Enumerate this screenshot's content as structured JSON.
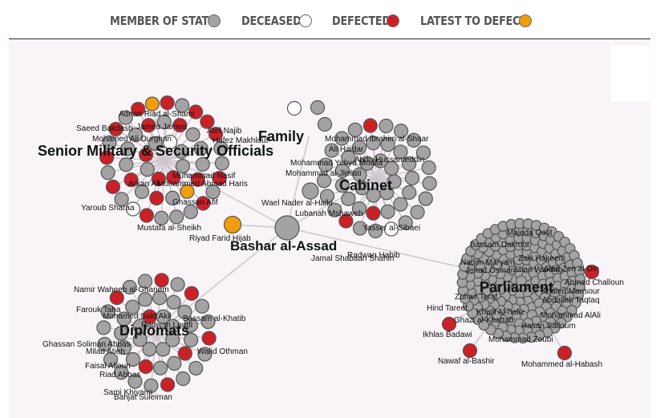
{
  "legend": {
    "member": "MEMBER OF STATE",
    "deceased": "DECEASED",
    "defected": "DEFECTED",
    "latest": "LATEST TO DEFECT"
  },
  "colors": {
    "member": "#a3a3a3",
    "deceased": "#ffffff",
    "defected": "#cc2027",
    "latest": "#f29d0b",
    "stroke": "#555555",
    "link": "#cfc6cf"
  },
  "center": {
    "name": "Bashar al-Assad"
  },
  "groups": {
    "military": {
      "title": "Senior Military & Security Officials",
      "labels": [
        "Adnan Riad al-Shami",
        "Saeed Bakdash",
        "Jamea Jamea",
        "Mohamed Ali Durghan",
        "Atef Najib",
        "Hafez Makhlouf",
        "Arkan Ali",
        "Mohammed Ahmad Haris",
        "Muhammad Nasif",
        "Yaroub Sharaa",
        "Ghassan Afif",
        "Mustafa al-Sheikh"
      ]
    },
    "family": {
      "title": "Family",
      "labels": []
    },
    "cabinet": {
      "title": "Cabinet",
      "labels": [
        "Mohammad Ibrahim al-Shaar",
        "Ali Haidar",
        "Abdo Hussameddin",
        "Mohammad Yehya Moalla",
        "Mohammad al-Jleilati",
        "Wael Nader al-Halki",
        "Lubanah Mshaweh",
        "Yasser al-Sibaei",
        "Radwan Habib",
        "Jamal Shabaan Shahin"
      ]
    },
    "parliament": {
      "title": "Parliament",
      "labels": [
        "Majeda Qatit",
        "Bassam Dakroui",
        "Zaki Hakeem",
        "Nadim Maryam",
        "Jehad Osman",
        "Jihan Wardah",
        "Alaa Zen al-Din",
        "Ahmad Challoun",
        "Khaled Mansour",
        "Abdallah Taqtaq",
        "Zuhair Taraf",
        "Hind Tareef",
        "Khalil Al-hafiz",
        "Ghazi al-Khattab",
        "Mohammad AlAli",
        "Hasan Salloum",
        "Ikhlas Badawi",
        "Mohammad Zoubi",
        "Nawaf al-Bashir",
        "Mohammed al-Habash"
      ]
    },
    "diplomats": {
      "title": "Diplomats",
      "labels": [
        "Namir Waheeb al-Ghanem",
        "Farouk Taha",
        "Mohamed Said Akil",
        "Bassam al-Khatib",
        "Radwan Loutfi",
        "Ghassan Soliman Abbas",
        "Milad Atieh",
        "Walid Othman",
        "Faisal Alloun",
        "Riad Abbas",
        "Sami Khiyami",
        "Bahjat Suleiman"
      ]
    }
  },
  "riyad": {
    "name": "Riyad Farid Hijab"
  }
}
